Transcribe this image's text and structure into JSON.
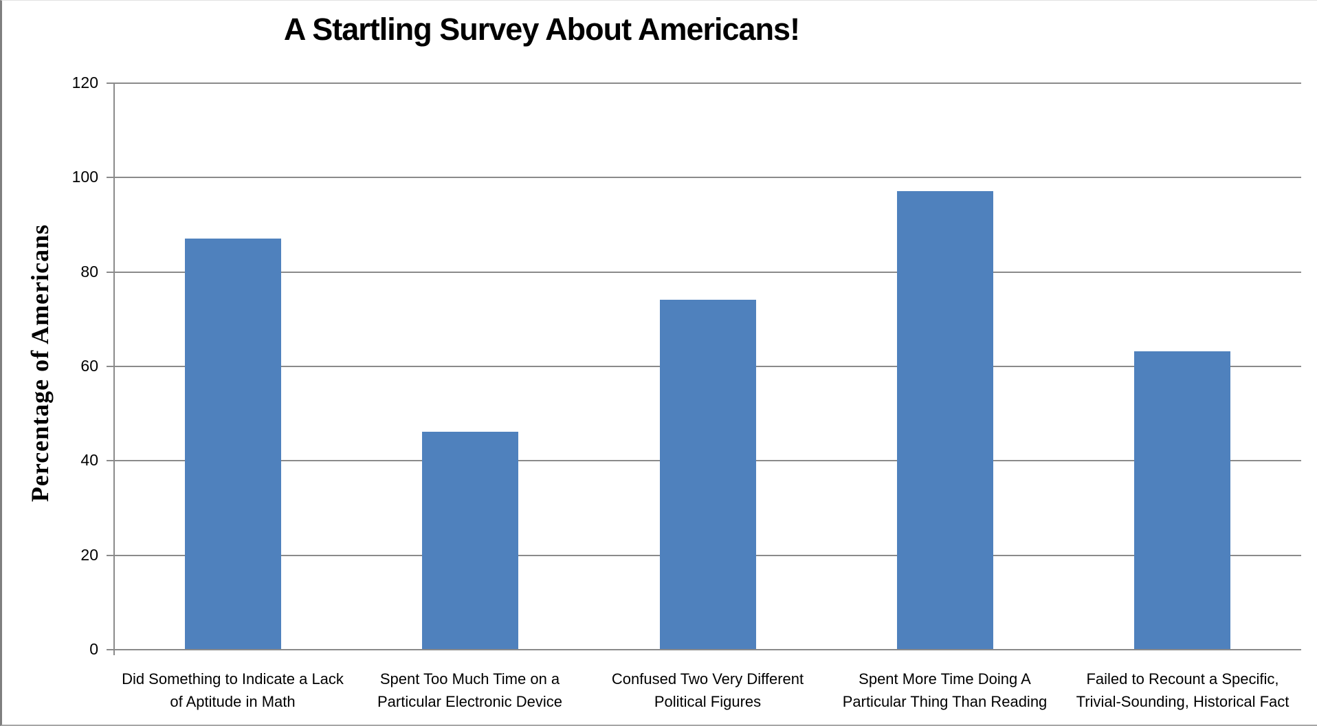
{
  "chart_data": {
    "type": "bar",
    "title": "A Startling Survey About Americans!",
    "xlabel": "",
    "ylabel": "Percentage  of Americans",
    "categories": [
      "Did Something to Indicate a Lack\nof Aptitude in Math",
      "Spent Too Much Time on a\nParticular Electronic Device",
      "Confused Two Very Different\nPolitical Figures",
      "Spent More Time Doing A\nParticular Thing Than Reading",
      "Failed to Recount a Specific,\nTrivial-Sounding, Historical Fact"
    ],
    "values": [
      87,
      46,
      74,
      97,
      63
    ],
    "ylim": [
      0,
      120
    ],
    "ytick_step": 20,
    "yticks": [
      0,
      20,
      40,
      60,
      80,
      100,
      120
    ],
    "grid": true,
    "legend": "none",
    "colors": {
      "bar": "#4F81BD",
      "gridline": "#8a8a8a",
      "axis": "#8a8a8a",
      "text": "#000000"
    }
  }
}
